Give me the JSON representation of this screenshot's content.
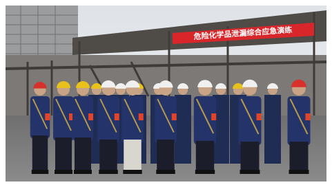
{
  "banner": {
    "text": "危险化学品泄漏综合应急演练"
  }
}
